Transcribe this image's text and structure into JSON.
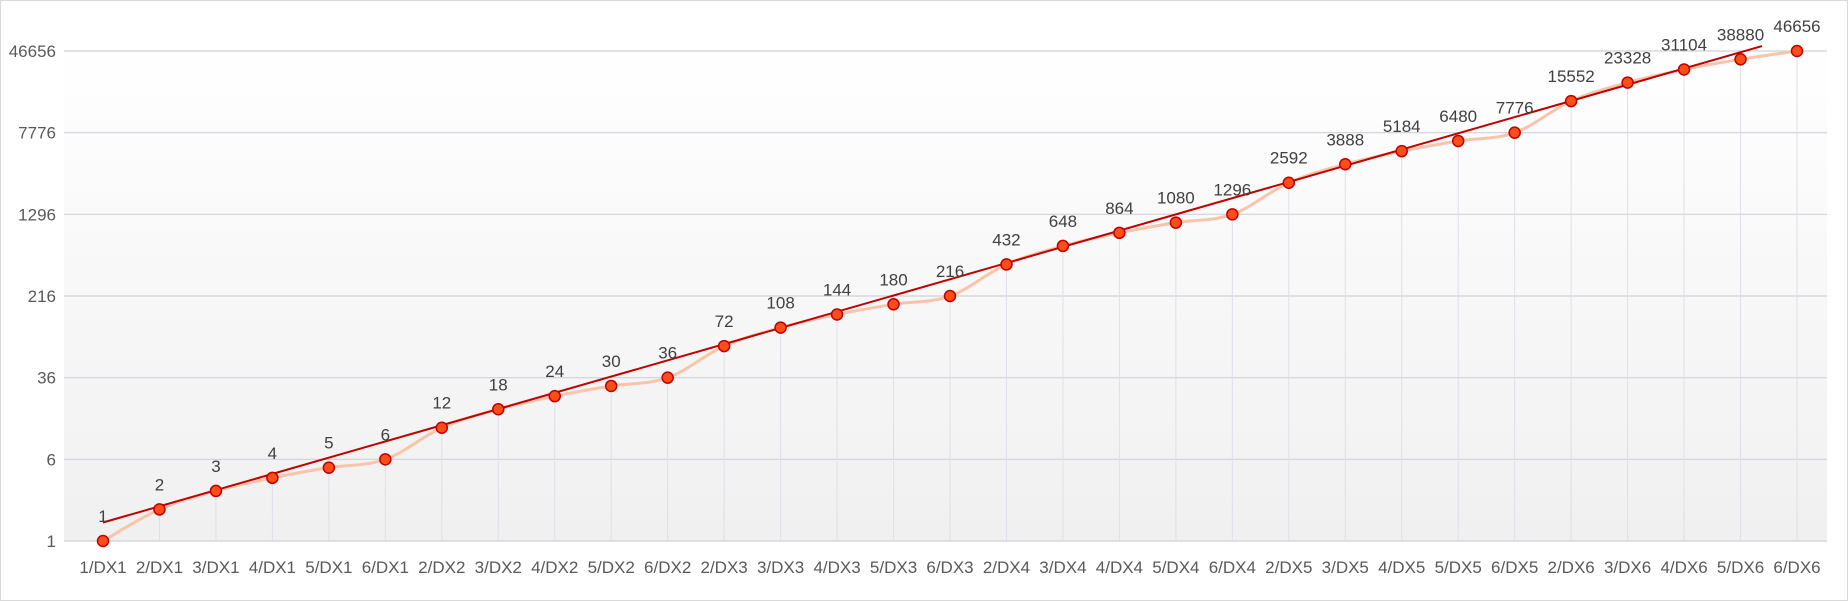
{
  "chart_data": {
    "type": "line",
    "title": "",
    "xlabel": "",
    "ylabel": "",
    "y_scale": "log",
    "y_log_base": 6,
    "ylim": [
      1,
      46656
    ],
    "y_ticks": [
      "1",
      "6",
      "36",
      "216",
      "1296",
      "7776",
      "46656"
    ],
    "categories": [
      "1/DX1",
      "2/DX1",
      "3/DX1",
      "4/DX1",
      "5/DX1",
      "6/DX1",
      "2/DX2",
      "3/DX2",
      "4/DX2",
      "5/DX2",
      "6/DX2",
      "2/DX3",
      "3/DX3",
      "4/DX3",
      "5/DX3",
      "6/DX3",
      "2/DX4",
      "3/DX4",
      "4/DX4",
      "5/DX4",
      "6/DX4",
      "2/DX5",
      "3/DX5",
      "4/DX5",
      "5/DX5",
      "6/DX5",
      "2/DX6",
      "3/DX6",
      "4/DX6",
      "5/DX6",
      "6/DX6"
    ],
    "series": [
      {
        "values": [
          1,
          2,
          3,
          4,
          5,
          6,
          12,
          18,
          24,
          30,
          36,
          72,
          108,
          144,
          180,
          216,
          432,
          648,
          864,
          1080,
          1296,
          2592,
          3888,
          5184,
          6480,
          7776,
          15552,
          23328,
          31104,
          38880,
          46656
        ],
        "labels": [
          "1",
          "2",
          "3",
          "4",
          "5",
          "6",
          "12",
          "18",
          "24",
          "30",
          "36",
          "72",
          "108",
          "144",
          "180",
          "216",
          "432",
          "648",
          "864",
          "1080",
          "1296",
          "2592",
          "3888",
          "5184",
          "6480",
          "7776",
          "15552",
          "23328",
          "31104",
          "38880",
          "46656"
        ]
      }
    ],
    "trendline": {
      "type": "exponential",
      "start_value": 1.5,
      "end_value": 52000
    },
    "grid": {
      "horizontal": true,
      "vertical_drop_lines": true
    },
    "legend": "none",
    "colors": {
      "marker_fill": "#ff4d1a",
      "marker_stroke": "#c00000",
      "series_line": "#f8c4aa",
      "trendline": "#c00000",
      "gridline": "#d0d0d8",
      "dropline": "#dde0ea",
      "plot_bg_top": "#ffffff",
      "plot_bg_bottom": "#f0f0f0"
    }
  }
}
